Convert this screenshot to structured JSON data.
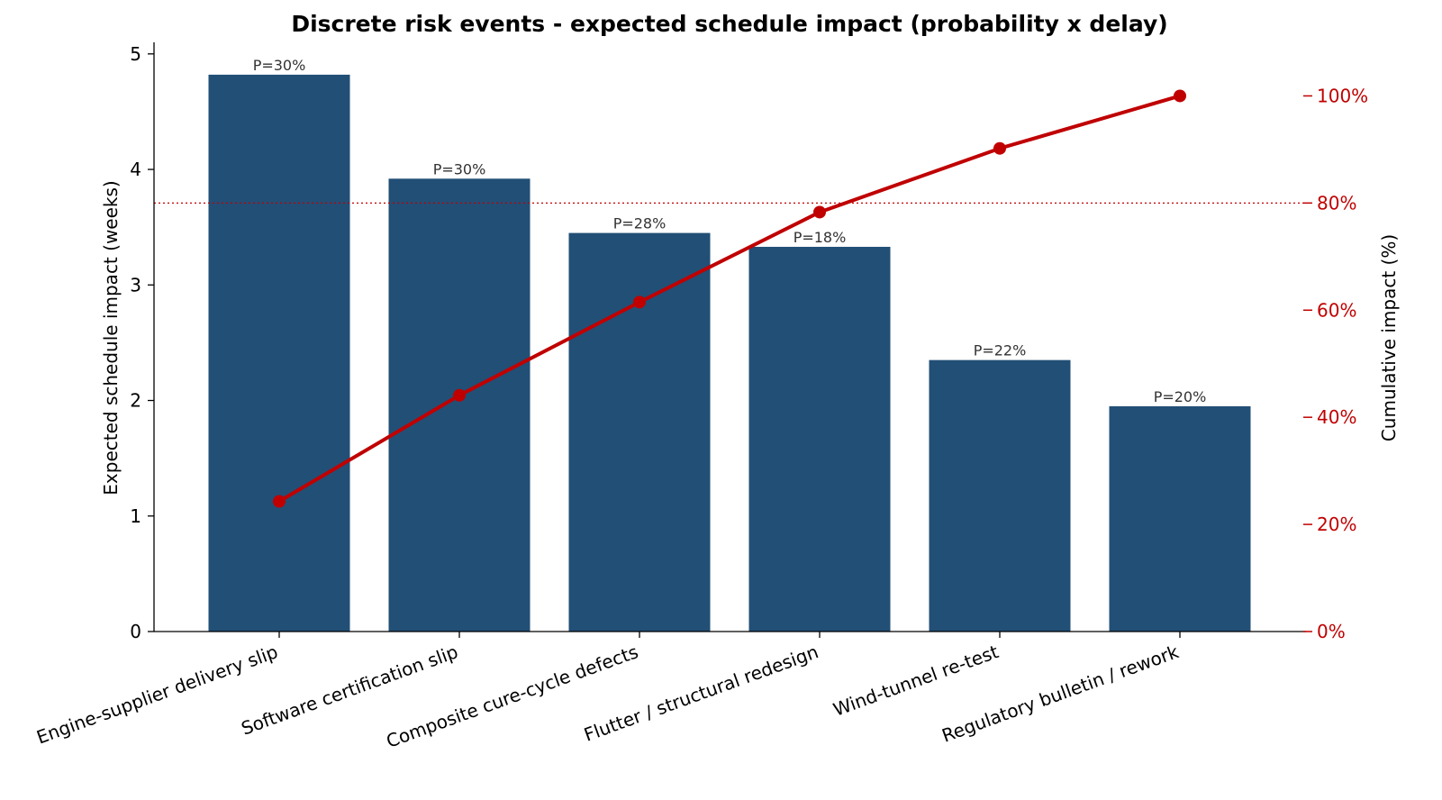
{
  "chart_data": {
    "type": "bar",
    "title": "Discrete risk events - expected schedule impact (probability x delay)",
    "categories": [
      "Engine-supplier delivery slip",
      "Software certification slip",
      "Composite cure-cycle defects",
      "Flutter / structural redesign",
      "Wind-tunnel re-test",
      "Regulatory bulletin / rework"
    ],
    "values": [
      4.82,
      3.92,
      3.45,
      3.33,
      2.35,
      1.95
    ],
    "bar_labels": [
      "P=30%",
      "P=30%",
      "P=28%",
      "P=18%",
      "P=22%",
      "P=20%"
    ],
    "cumulative_pct": [
      24.3,
      44.1,
      61.5,
      78.3,
      90.2,
      100.0
    ],
    "threshold_pct": 80,
    "ylabel": "Expected schedule impact  (weeks)",
    "y2label": "Cumulative impact  (%)",
    "ylim": [
      0,
      5.1
    ],
    "yticks": [
      0,
      1,
      2,
      3,
      4,
      5
    ],
    "y2lim": [
      0,
      110
    ],
    "y2ticks": [
      0,
      20,
      40,
      60,
      80,
      100
    ],
    "y2tick_labels": [
      "0%",
      "20%",
      "40%",
      "60%",
      "80%",
      "100%"
    ],
    "colors": {
      "bar": "#224f76",
      "cumulative": "#c00000"
    },
    "grid": false,
    "legend": "none"
  }
}
